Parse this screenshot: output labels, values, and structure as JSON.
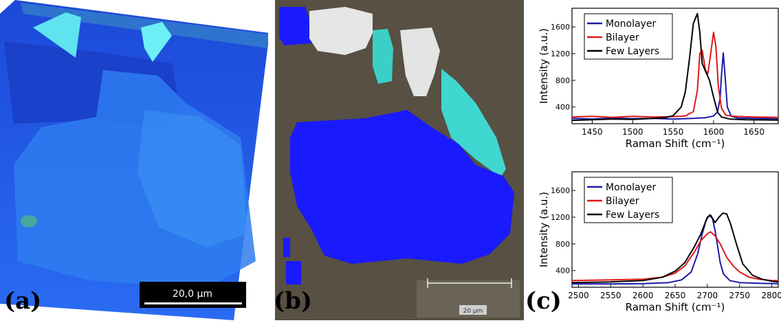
{
  "panels": {
    "a": {
      "letter": "(a)",
      "scalebar_label": "20,0 µm",
      "colors": {
        "bg": "#1e52ee",
        "light": "#4cc0f2"
      }
    },
    "b": {
      "letter": "(b)",
      "scalebar_label": "20 µm",
      "colors": {
        "bg": "#5a5244",
        "mono": "#1a1aff",
        "white": "#e8e8e8",
        "cyan": "#3fd7d0"
      }
    },
    "c": {
      "letter": "(c)"
    }
  },
  "chart_data": [
    {
      "type": "line",
      "title": "",
      "xlabel": "Raman Shift (cm⁻¹)",
      "ylabel": "Intensity (a.u.)",
      "xlim": [
        1425,
        1680
      ],
      "ylim": [
        150,
        1880
      ],
      "xticks": [
        1450,
        1500,
        1550,
        1600,
        1650
      ],
      "yticks": [
        400,
        800,
        1200,
        1600
      ],
      "legend": "top-left",
      "series": [
        {
          "name": "Monolayer",
          "color": "#1a1aa8",
          "x": [
            1425,
            1450,
            1475,
            1500,
            1525,
            1550,
            1575,
            1590,
            1600,
            1605,
            1608,
            1610,
            1612,
            1614,
            1617,
            1622,
            1630,
            1650,
            1680
          ],
          "y": [
            230,
            220,
            235,
            225,
            230,
            220,
            230,
            240,
            265,
            330,
            520,
            900,
            1210,
            900,
            400,
            260,
            235,
            230,
            225
          ]
        },
        {
          "name": "Bilayer",
          "color": "#e01818",
          "x": [
            1425,
            1450,
            1475,
            1500,
            1525,
            1550,
            1565,
            1575,
            1580,
            1583,
            1586,
            1590,
            1593,
            1597,
            1600,
            1603,
            1606,
            1610,
            1615,
            1625,
            1650,
            1680
          ],
          "y": [
            250,
            260,
            245,
            260,
            250,
            255,
            265,
            330,
            650,
            1200,
            1250,
            950,
            900,
            1250,
            1520,
            1300,
            700,
            380,
            280,
            260,
            250,
            245
          ]
        },
        {
          "name": "Few Layers",
          "color": "#000000",
          "x": [
            1425,
            1450,
            1475,
            1500,
            1525,
            1540,
            1550,
            1560,
            1565,
            1570,
            1575,
            1580,
            1583,
            1586,
            1590,
            1595,
            1600,
            1605,
            1610,
            1620,
            1640,
            1680
          ],
          "y": [
            200,
            210,
            220,
            215,
            230,
            240,
            270,
            400,
            620,
            1100,
            1650,
            1800,
            1520,
            1050,
            940,
            800,
            550,
            320,
            250,
            220,
            210,
            205
          ]
        }
      ]
    },
    {
      "type": "line",
      "title": "",
      "xlabel": "Raman Shift (cm⁻¹)",
      "ylabel": "Intensity (a.u.)",
      "xlim": [
        2490,
        2810
      ],
      "ylim": [
        150,
        1880
      ],
      "xticks": [
        2500,
        2550,
        2600,
        2650,
        2700,
        2750,
        2800
      ],
      "yticks": [
        400,
        800,
        1200,
        1600
      ],
      "legend": "top-left",
      "series": [
        {
          "name": "Monolayer",
          "color": "#1a1aa8",
          "x": [
            2490,
            2550,
            2600,
            2640,
            2660,
            2675,
            2685,
            2692,
            2698,
            2703,
            2708,
            2712,
            2716,
            2720,
            2725,
            2735,
            2750,
            2780,
            2810
          ],
          "y": [
            200,
            200,
            205,
            220,
            260,
            380,
            650,
            950,
            1150,
            1230,
            1180,
            1000,
            760,
            520,
            350,
            250,
            220,
            210,
            205
          ]
        },
        {
          "name": "Bilayer",
          "color": "#e01818",
          "x": [
            2490,
            2550,
            2600,
            2630,
            2650,
            2665,
            2680,
            2690,
            2700,
            2705,
            2712,
            2720,
            2730,
            2740,
            2750,
            2765,
            2780,
            2800,
            2810
          ],
          "y": [
            250,
            260,
            270,
            300,
            360,
            470,
            680,
            850,
            950,
            980,
            920,
            800,
            600,
            470,
            380,
            300,
            270,
            250,
            250
          ]
        },
        {
          "name": "Few Layers",
          "color": "#000000",
          "x": [
            2490,
            2550,
            2600,
            2630,
            2650,
            2665,
            2680,
            2690,
            2700,
            2705,
            2712,
            2718,
            2724,
            2730,
            2736,
            2745,
            2755,
            2770,
            2785,
            2800,
            2810
          ],
          "y": [
            220,
            230,
            250,
            300,
            390,
            520,
            760,
            950,
            1200,
            1230,
            1120,
            1200,
            1260,
            1250,
            1100,
            800,
            500,
            330,
            270,
            240,
            230
          ]
        }
      ]
    }
  ]
}
